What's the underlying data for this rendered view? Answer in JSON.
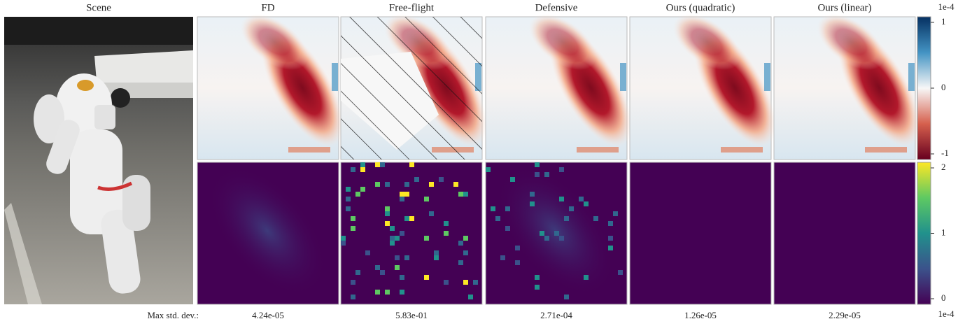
{
  "columns": [
    "Scene",
    "FD",
    "Free-flight",
    "Defensive",
    "Ours (quadratic)",
    "Ours (linear)"
  ],
  "colorbars": [
    {
      "exponent": "1e-4",
      "ticks": [
        "1",
        "0",
        "-1"
      ]
    },
    {
      "exponent": "1e-4",
      "ticks": [
        "2",
        "1",
        "0"
      ]
    }
  ],
  "footer": {
    "label": "Max std. dev.:",
    "values": [
      "4.24e-05",
      "5.83e-01",
      "2.71e-04",
      "1.26e-05",
      "2.29e-05"
    ]
  }
}
